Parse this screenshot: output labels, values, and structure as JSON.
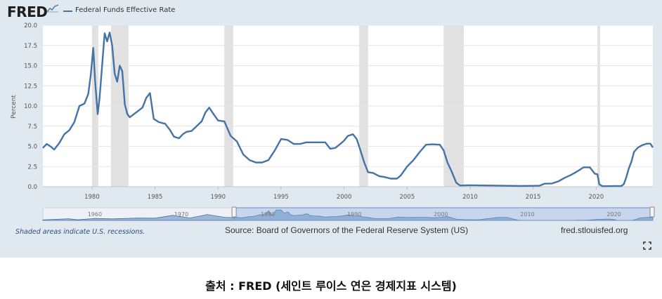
{
  "header": {
    "logo_text": "FRED",
    "logo_icon": "fred-chart-icon",
    "legend_label": "Federal Funds Effective Rate",
    "series_color": "#4572a7"
  },
  "footer": {
    "shaded_note": "Shaded areas indicate U.S. recessions.",
    "source": "Source: Board of Governors of the Federal Reserve System (US)",
    "url": "fred.stlouisfed.org",
    "fullscreen_icon": "fullscreen-icon"
  },
  "caption": "출처 : FRED (세인트 루이스 연은 경제지표 시스템)",
  "chart_data": {
    "type": "line",
    "title": "",
    "xlabel": "",
    "ylabel": "Percent",
    "xlim": [
      1976.1,
      2024.5
    ],
    "ylim": [
      0,
      20
    ],
    "x_ticks": [
      1980,
      1985,
      1990,
      1995,
      2000,
      2005,
      2010,
      2015,
      2020
    ],
    "y_ticks": [
      "0.0",
      "2.5",
      "5.0",
      "7.5",
      "10.0",
      "12.5",
      "15.0",
      "17.5",
      "20.0"
    ],
    "grid": "horizontal",
    "legend": "top-left",
    "recessions": [
      [
        1980.0,
        1980.5
      ],
      [
        1981.5,
        1982.9
      ],
      [
        1990.5,
        1991.2
      ],
      [
        2001.2,
        2001.9
      ],
      [
        2007.9,
        2009.5
      ],
      [
        2020.1,
        2020.3
      ]
    ],
    "navigator_ticks": [
      "1960",
      "1970",
      "1980",
      "1990",
      "2000",
      "2010",
      "2020"
    ],
    "series": [
      {
        "name": "Federal Funds Effective Rate",
        "x": [
          1976.1,
          1976.4,
          1976.7,
          1977.0,
          1977.4,
          1977.8,
          1978.2,
          1978.6,
          1979.0,
          1979.4,
          1979.7,
          1979.9,
          1980.1,
          1980.25,
          1980.45,
          1980.6,
          1980.8,
          1981.0,
          1981.2,
          1981.4,
          1981.6,
          1981.8,
          1982.0,
          1982.2,
          1982.4,
          1982.6,
          1982.8,
          1983.0,
          1983.5,
          1984.0,
          1984.3,
          1984.6,
          1984.9,
          1985.3,
          1985.8,
          1986.2,
          1986.5,
          1986.9,
          1987.2,
          1987.5,
          1987.9,
          1988.3,
          1988.7,
          1989.0,
          1989.3,
          1989.6,
          1990.0,
          1990.5,
          1991.0,
          1991.5,
          1992.0,
          1992.5,
          1993.0,
          1993.5,
          1994.0,
          1994.5,
          1995.0,
          1995.5,
          1996.0,
          1996.5,
          1997.0,
          1998.0,
          1998.5,
          1998.9,
          1999.3,
          1999.7,
          2000.0,
          2000.3,
          2000.7,
          2001.0,
          2001.3,
          2001.6,
          2001.9,
          2002.3,
          2002.8,
          2003.2,
          2003.7,
          2004.2,
          2004.5,
          2005.0,
          2005.5,
          2006.0,
          2006.5,
          2007.0,
          2007.6,
          2007.9,
          2008.2,
          2008.5,
          2008.9,
          2009.2,
          2010.0,
          2012.0,
          2014.0,
          2015.5,
          2015.9,
          2016.5,
          2017.0,
          2017.5,
          2018.0,
          2018.5,
          2019.0,
          2019.5,
          2019.9,
          2020.1,
          2020.25,
          2020.5,
          2021.5,
          2022.0,
          2022.2,
          2022.4,
          2022.6,
          2022.8,
          2023.0,
          2023.3,
          2023.6,
          2024.0,
          2024.3,
          2024.5
        ],
        "values": [
          4.8,
          5.3,
          5.0,
          4.6,
          5.4,
          6.5,
          7.0,
          8.0,
          10.0,
          10.3,
          11.5,
          13.8,
          17.2,
          13.0,
          9.0,
          11.0,
          15.0,
          19.0,
          18.0,
          19.1,
          17.5,
          14.0,
          13.0,
          15.0,
          14.3,
          10.2,
          9.0,
          8.6,
          9.2,
          9.8,
          11.0,
          11.6,
          8.4,
          8.0,
          7.8,
          7.0,
          6.2,
          6.0,
          6.5,
          6.8,
          6.9,
          7.5,
          8.1,
          9.2,
          9.8,
          9.1,
          8.2,
          8.1,
          6.3,
          5.6,
          4.0,
          3.3,
          3.0,
          3.0,
          3.3,
          4.5,
          5.9,
          5.8,
          5.3,
          5.3,
          5.5,
          5.5,
          5.5,
          4.7,
          4.8,
          5.3,
          5.7,
          6.3,
          6.5,
          5.9,
          4.5,
          3.0,
          1.8,
          1.7,
          1.3,
          1.2,
          1.0,
          1.0,
          1.4,
          2.5,
          3.3,
          4.3,
          5.2,
          5.25,
          5.2,
          4.5,
          3.0,
          2.0,
          0.5,
          0.15,
          0.18,
          0.14,
          0.09,
          0.12,
          0.37,
          0.4,
          0.66,
          1.1,
          1.45,
          1.9,
          2.4,
          2.4,
          1.6,
          1.55,
          0.3,
          0.06,
          0.08,
          0.08,
          0.33,
          1.2,
          2.3,
          3.1,
          4.3,
          4.83,
          5.1,
          5.33,
          5.33,
          4.85
        ]
      }
    ]
  }
}
